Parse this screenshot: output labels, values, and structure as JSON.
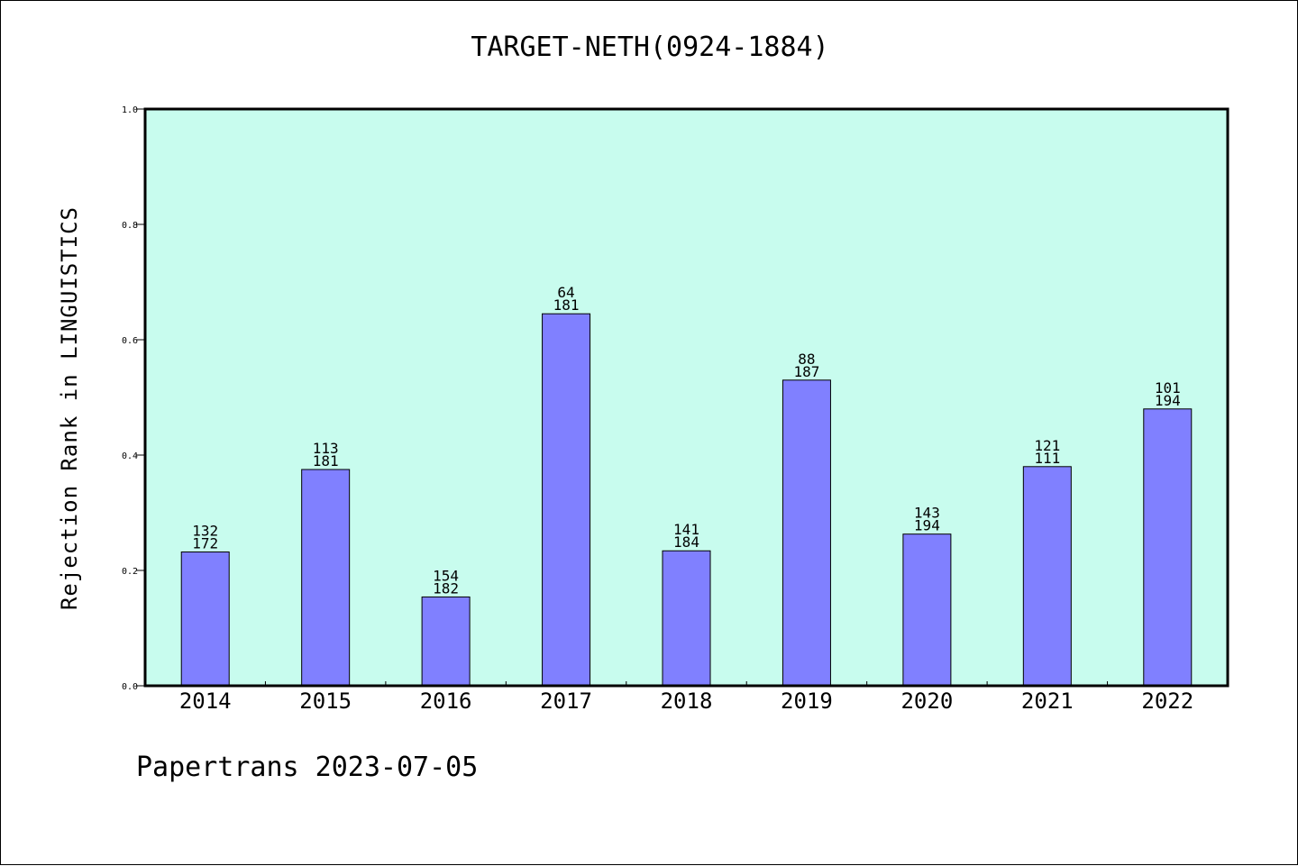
{
  "chart_data": {
    "type": "bar",
    "title": "TARGET-NETH(0924-1884)",
    "xlabel": "",
    "ylabel": "Rejection Rank in LINGUISTICS",
    "ylim": [
      0,
      1.0
    ],
    "yticks": [
      "0.0",
      "0.2",
      "0.4",
      "0.6",
      "0.8",
      "1.0"
    ],
    "categories": [
      "2014",
      "2015",
      "2016",
      "2017",
      "2018",
      "2019",
      "2020",
      "2021",
      "2022"
    ],
    "values": [
      0.232,
      0.375,
      0.154,
      0.645,
      0.234,
      0.53,
      0.263,
      0.38,
      0.48
    ],
    "bar_labels_top": [
      "132",
      "113",
      "154",
      "64",
      "141",
      "88",
      "143",
      "121",
      "101"
    ],
    "bar_labels_bottom": [
      "172",
      "181",
      "182",
      "181",
      "184",
      "187",
      "194",
      "111",
      "194"
    ],
    "plot_background": "#c8fcee",
    "bar_color": "#8080ff",
    "grid": false,
    "legend": "none"
  },
  "footer": "Papertrans 2023-07-05"
}
